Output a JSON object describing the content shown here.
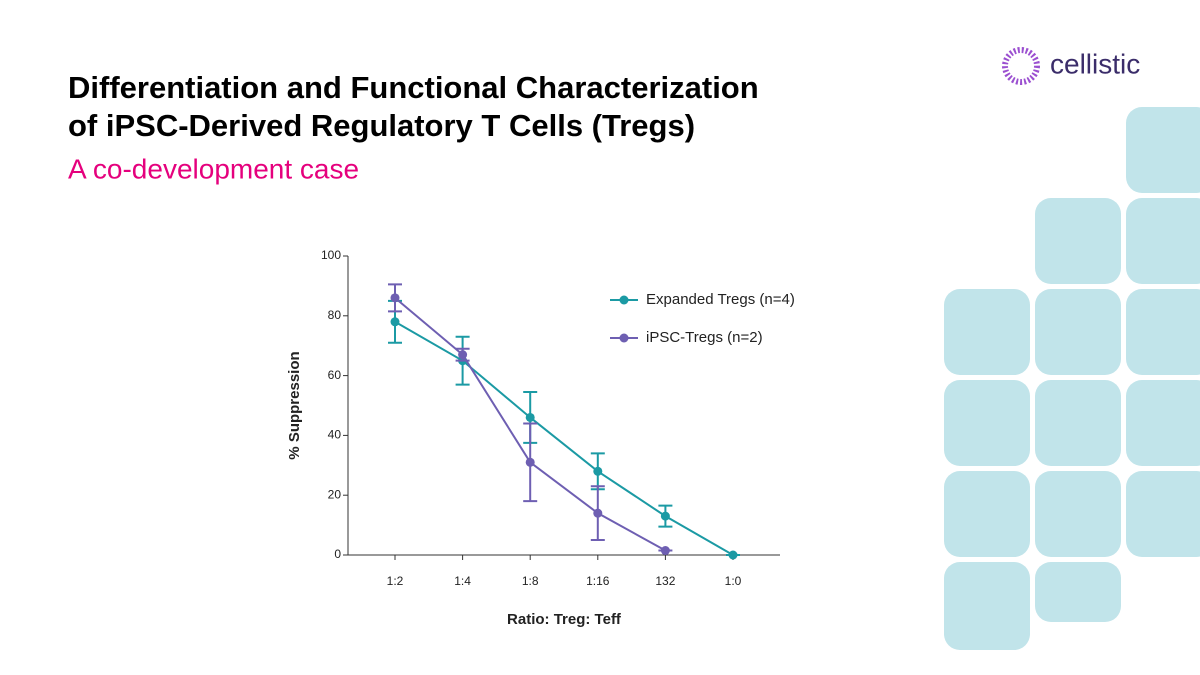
{
  "header": {
    "title_lines": [
      "Differentiation and Functional Characterization",
      "of iPSC-Derived Regulatory T Cells (Tregs)"
    ],
    "subtitle": "A co-development case"
  },
  "logo": {
    "text": "cellistic"
  },
  "chart_data": {
    "type": "line",
    "x_label": "Ratio: Treg: Teff",
    "y_label": "% Suppression",
    "categories": [
      "1:2",
      "1:4",
      "1:8",
      "1:16",
      "132",
      "1:0"
    ],
    "series": [
      {
        "name": "Expanded Tregs (n=4)",
        "color": "#1b9aa4",
        "values": [
          78,
          65,
          46,
          28,
          13,
          0
        ],
        "errors": [
          7,
          8,
          8.5,
          6,
          3.5,
          0
        ]
      },
      {
        "name": "iPSC-Tregs (n=2)",
        "color": "#6e5fb2",
        "values": [
          86,
          67,
          31,
          14,
          1.5,
          null
        ],
        "errors": [
          4.5,
          2,
          13,
          9,
          0,
          null
        ]
      }
    ],
    "ylim": [
      0,
      100
    ],
    "yticks": [
      0,
      20,
      40,
      60,
      80,
      100
    ],
    "grid": false,
    "legend": "upper right"
  }
}
